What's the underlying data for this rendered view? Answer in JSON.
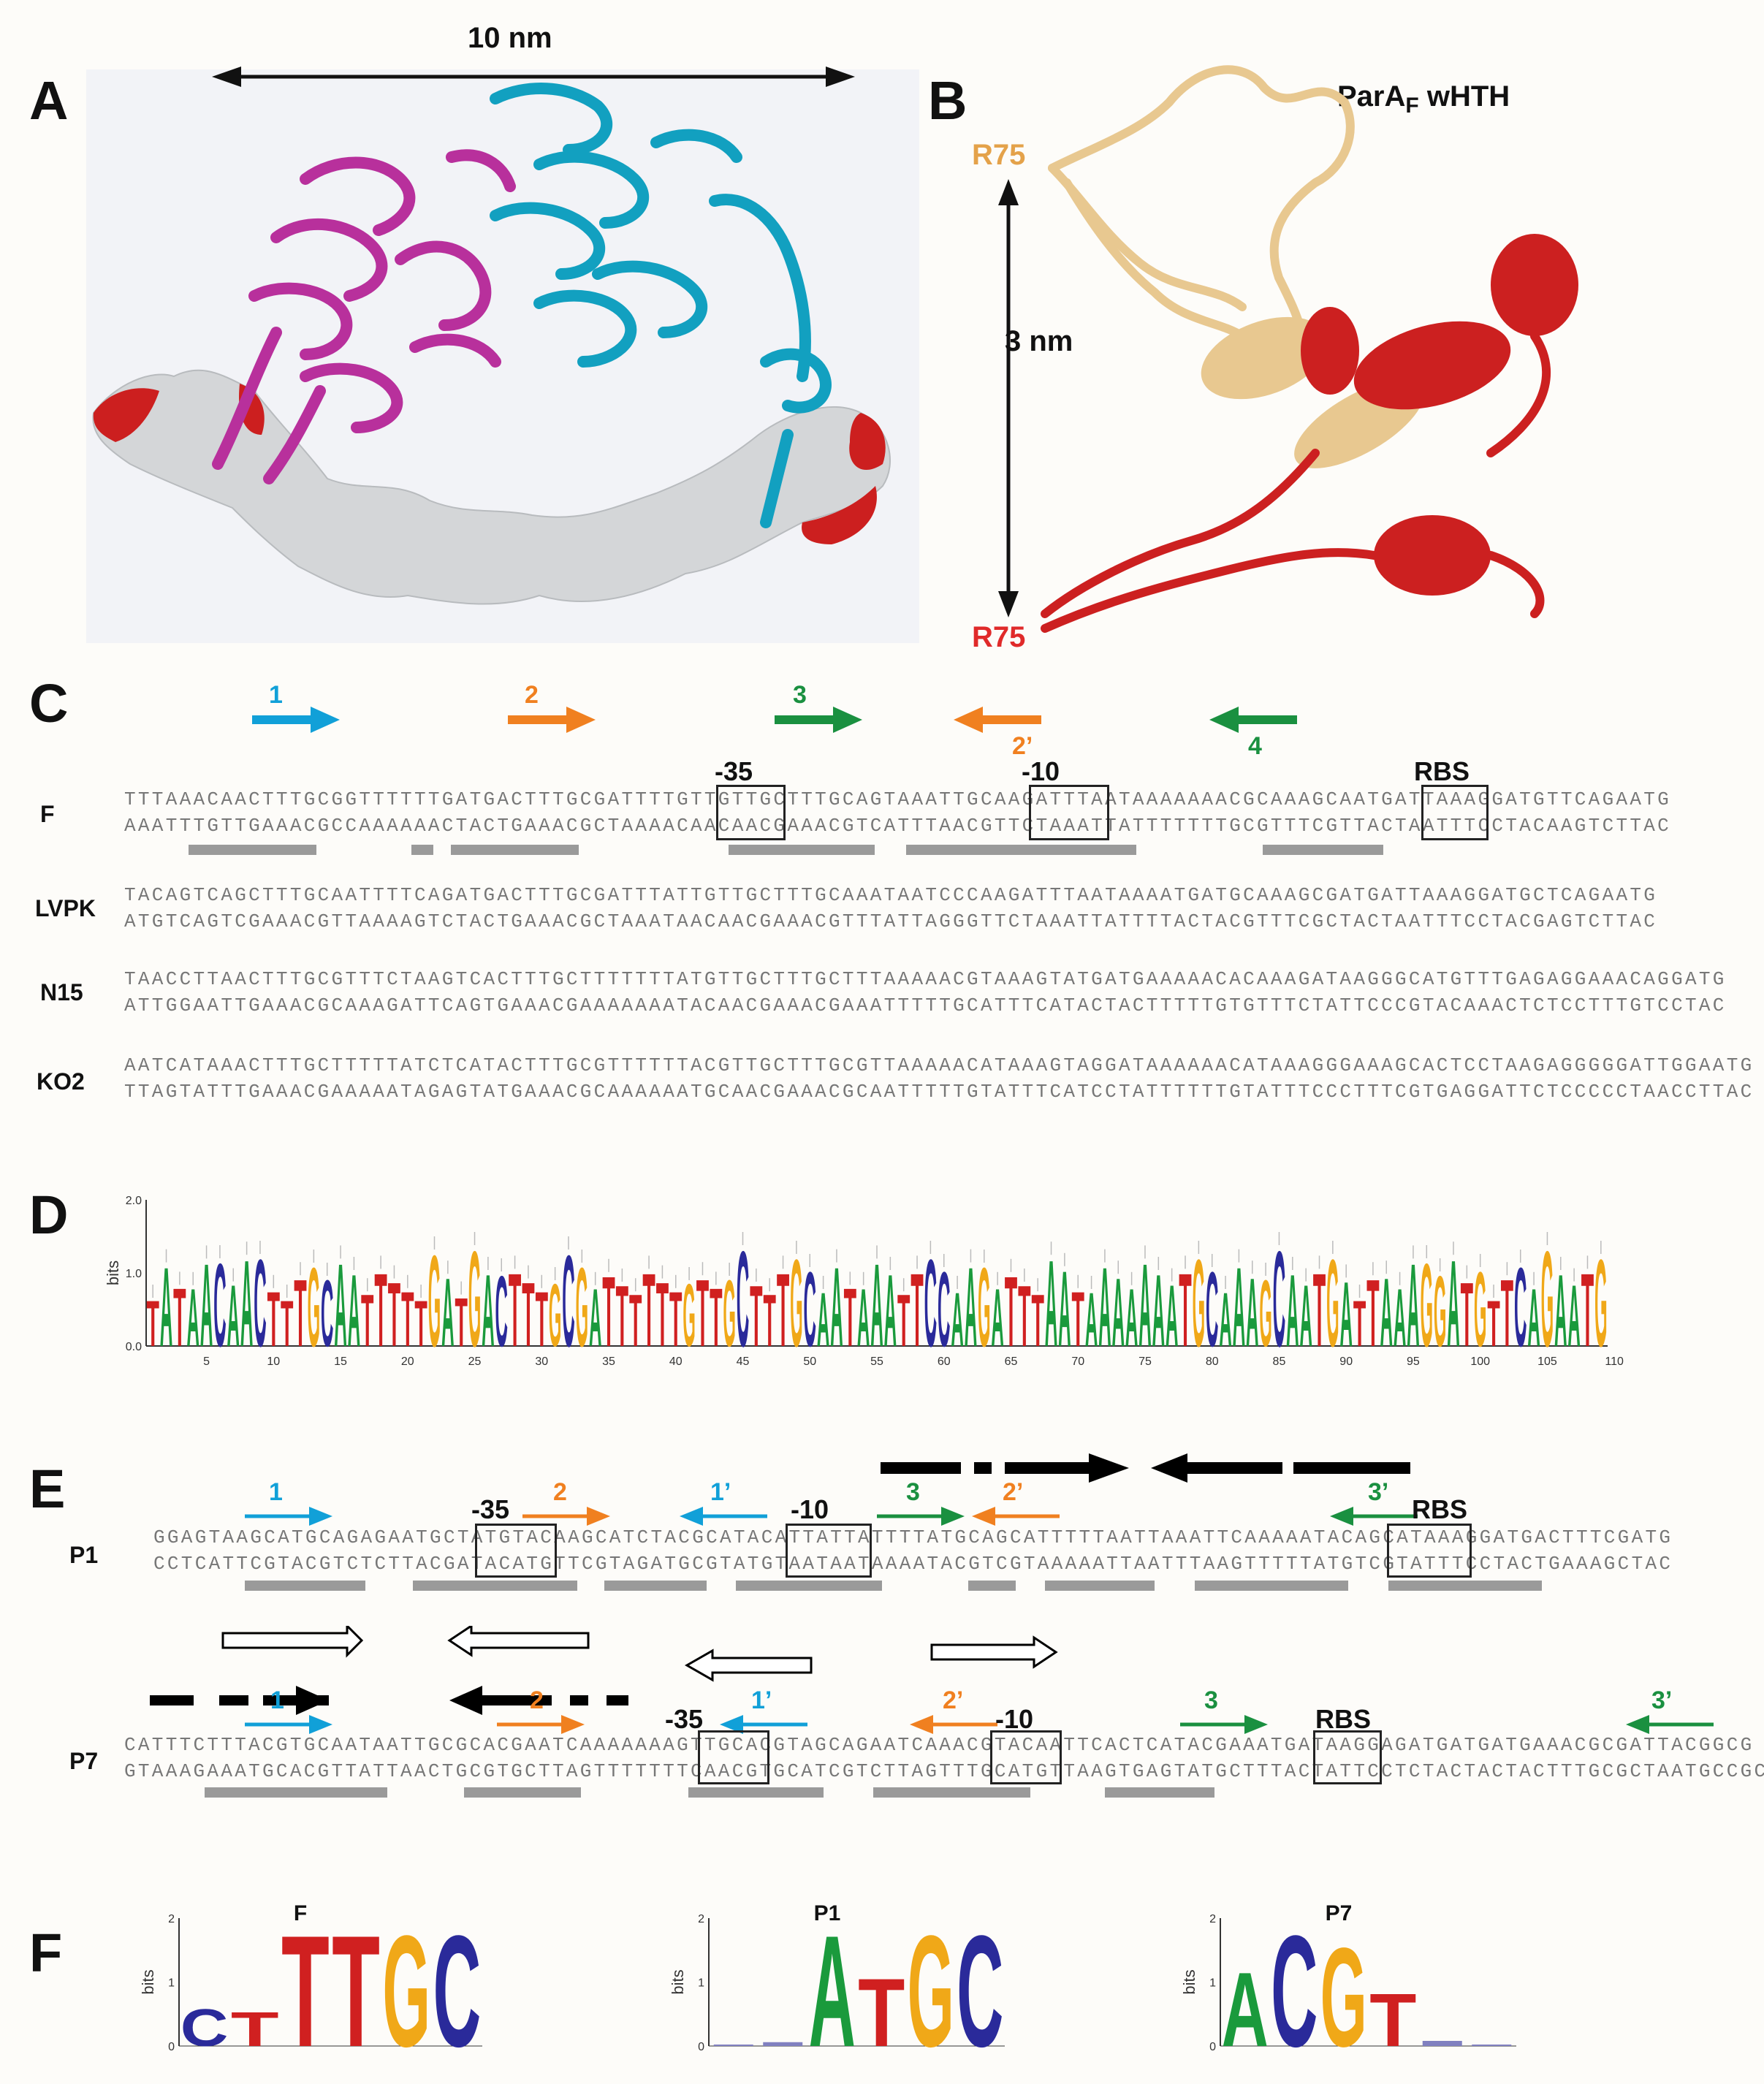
{
  "figure": {
    "panels": {
      "A": "A",
      "B": "B",
      "C": "C",
      "D": "D",
      "E": "E",
      "F": "F"
    },
    "panel_a": {
      "scale_label": "10 nm"
    },
    "panel_b": {
      "title_main": "ParA",
      "title_sub": "F",
      "title_suffix": " wHTH",
      "top_label": "R75",
      "bottom_label": "R75",
      "scale_label": "3 nm"
    },
    "panel_c": {
      "arrow_labels": {
        "a1": "1",
        "a2": "2",
        "a3": "3",
        "a2p": "2’",
        "a4": "4"
      },
      "box_labels": {
        "m35": "-35",
        "m10": "-10",
        "rbs": "RBS"
      },
      "species": [
        {
          "name": "F",
          "top": "TTTAAACAACTTTGCGGTTTTTTGATGACTTTGCGATTTTGTTGTTGCTTTGCAGTAAATTGCAAGATTTAATAAAAAAACGCAAAGCAATGATTAAAGGATGTTCAGAATG",
          "bottom": "AAATTTGTTGAAACGCCAAAAAACTACTGAAACGCTAAAACAACAACGAAACGTCATTTAACGTTCTAAATTATTTTTTTGCGTTTCGTTACTAATTTCCTACAAGTCTTAC"
        },
        {
          "name": "LVPK",
          "top": "TACAGTCAGCTTTGCAATTTTCAGATGACTTTGCGATTTATTGTTGCTTTGCAAATAATCCCAAGATTTAATAAAATGATGCAAAGCGATGATTAAAGGATGCTCAGAATG",
          "bottom": "ATGTCAGTCGAAACGTTAAAAGTCTACTGAAACGCTAAATAACAACGAAACGTTTATTAGGGTTCTAAATTATTTTACTACGTTTCGCTACTAATTTCCTACGAGTCTTAC"
        },
        {
          "name": "N15",
          "top": "TAACCTTAACTTTGCGTTTCTAAGTCACTTTGCTTTTTTTATGTTGCTTTGCTTTAAAAACGTAAAGTATGATGAAAAACACAAAGATAAGGGCATGTTTGAGAGGAAACAGGATG",
          "bottom": "ATTGGAATTGAAACGCAAAGATTCAGTGAAACGAAAAAAATACAACGAAACGAAATTTTTGCATTTCATACTACTTTTTGTGTTTCTATTCCCGTACAAACTCTCCTTTGTCCTAC"
        },
        {
          "name": "KO2",
          "top": "AATCATAAACTTTGCTTTTTATCTCATACTTTGCGTTTTTTACGTTGCTTTGCGTTAAAAACATAAAGTAGGATAAAAAACATAAAGGGAAAGCACTCCTAAGAGGGGGATTGGAATG",
          "bottom": "TTAGTATTTGAAACGAAAAATAGAGTATGAAACGCAAAAAATGCAACGAAACGCAATTTTTGTATTTCATCCTATTTTTTGTATTTCCCTTTCGTGAGGATTCTCCCCCTAACCTTAC"
        }
      ]
    },
    "panel_d": {
      "chart_data": {
        "type": "sequence-logo",
        "ylabel": "bits",
        "ylim": [
          0,
          2
        ],
        "yticks": [
          "0.0",
          "1.0",
          "2.0"
        ],
        "x_ticks": [
          "5",
          "10",
          "15",
          "20",
          "25",
          "30",
          "35",
          "40",
          "45",
          "50",
          "55",
          "60",
          "65",
          "70",
          "75",
          "80",
          "85",
          "90",
          "95",
          "100",
          "105",
          "110"
        ],
        "consensus": "TATAACAACTTTGCAATTTTTGATGACTTTGCGATTTTTTGTTGCTTTGCAATAAATTCCAAGATTTAATAAAAAAATGCAAAGCAATGATTAAAGGATGTTCAGAATG"
      }
    },
    "panel_e": {
      "p1": {
        "name": "P1",
        "top": "GGAGTAAGCATGCAGAGAATGCTATGTACAAGCATCTACGCATACATTATTATTTTATGCAGCATTTTTAATTAAATTCAAAAATACAGCATAAAGGATGACTTTCGATG",
        "bottom": "CCTCATTCGTACGTCTCTTACGATACATGTTCGTAGATGCGTATGTAATAATAAAATACGTCGTAAAAATTAATTTAAGTTTTTATGTCGTATTTCCTACTGAAAGCTAC",
        "arrow_labels": {
          "a1": "1",
          "a2": "2",
          "a1p": "1’",
          "a3": "3",
          "a2p": "2’",
          "a3p": "3’"
        },
        "box_labels": {
          "m35": "-35",
          "m10": "-10",
          "rbs": "RBS"
        }
      },
      "p7": {
        "name": "P7",
        "top": "CATTTCTTTACGTGCAATAATTGCGCACGAATCAAAAAAAGTTGCACGTAGCAGAATCAAACGTACAATTCACTCATACGAAATGATAAGGAGATGATGATGAAACGCGATTACGGCG",
        "bottom": "GTAAAGAAATGCACGTTATTAACTGCGTGCTTAGTTTTTTTCAACGTGCATCGTCTTAGTTTGCATGTTAAGTGAGTATGCTTTACTATTCCTCTACTACTACTTTGCGCTAATGCCGC",
        "arrow_labels": {
          "a1": "1",
          "a2": "2",
          "a1p": "1’",
          "a2p": "2’",
          "a3": "3",
          "a3p": "3’"
        },
        "box_labels": {
          "m35": "-35",
          "m10": "-10",
          "rbs": "RBS"
        }
      }
    },
    "panel_f": {
      "chart_data": [
        {
          "type": "sequence-logo",
          "title": "F",
          "ylabel": "bits",
          "ylim": [
            0,
            2
          ],
          "letters": [
            "C",
            "T",
            "T",
            "T",
            "G",
            "C"
          ],
          "bits": [
            0.6,
            0.55,
            1.8,
            1.8,
            1.8,
            1.8
          ]
        },
        {
          "type": "sequence-logo",
          "title": "P1",
          "ylabel": "bits",
          "ylim": [
            0,
            2
          ],
          "letters": [
            "",
            "",
            "A",
            "T",
            "G",
            "C"
          ],
          "bits": [
            0.02,
            0.06,
            1.8,
            1.1,
            1.8,
            1.8
          ]
        },
        {
          "type": "sequence-logo",
          "title": "P7",
          "ylabel": "bits",
          "ylim": [
            0,
            2
          ],
          "letters": [
            "A",
            "C",
            "G",
            "T",
            "",
            ""
          ],
          "bits": [
            1.2,
            1.8,
            1.6,
            0.85,
            0.08,
            0.0
          ]
        }
      ]
    }
  },
  "colors": {
    "blue": "#11a0d8",
    "orange": "#f08020",
    "green": "#1a9040",
    "red": "#e02020",
    "magenta": "#b8309c",
    "cyan": "#12a0c0",
    "tan": "#e8c890"
  }
}
